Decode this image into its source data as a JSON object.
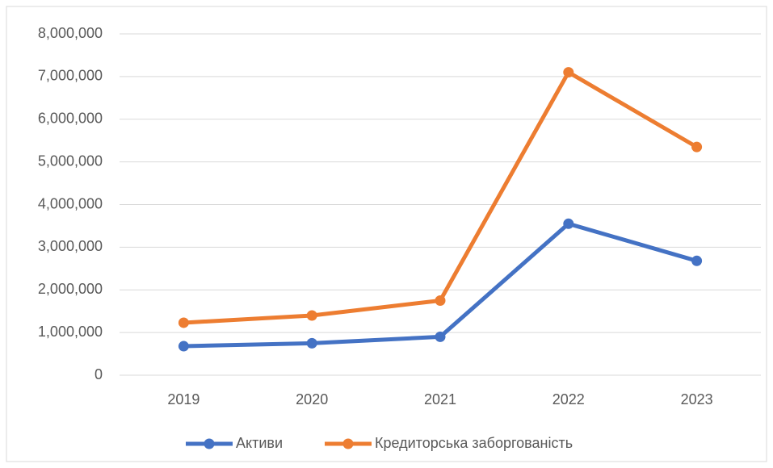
{
  "chart_data": {
    "type": "line",
    "categories": [
      "2019",
      "2020",
      "2021",
      "2022",
      "2023"
    ],
    "series": [
      {
        "name": "Активи",
        "color": "#4472c4",
        "values": [
          680000,
          750000,
          900000,
          3550000,
          2680000
        ]
      },
      {
        "name": "Кредиторська заборгованість",
        "color": "#ed7d31",
        "values": [
          1230000,
          1400000,
          1750000,
          7100000,
          5350000
        ]
      }
    ],
    "ylim": [
      0,
      8000000
    ],
    "yticks": [
      {
        "value": 0,
        "label": "0"
      },
      {
        "value": 1000000,
        "label": "1,000,000"
      },
      {
        "value": 2000000,
        "label": "2,000,000"
      },
      {
        "value": 3000000,
        "label": "3,000,000"
      },
      {
        "value": 4000000,
        "label": "4,000,000"
      },
      {
        "value": 5000000,
        "label": "5,000,000"
      },
      {
        "value": 6000000,
        "label": "6,000,000"
      },
      {
        "value": 7000000,
        "label": "7,000,000"
      },
      {
        "value": 8000000,
        "label": "8,000,000"
      }
    ],
    "grid": true,
    "legend": "bottom"
  }
}
